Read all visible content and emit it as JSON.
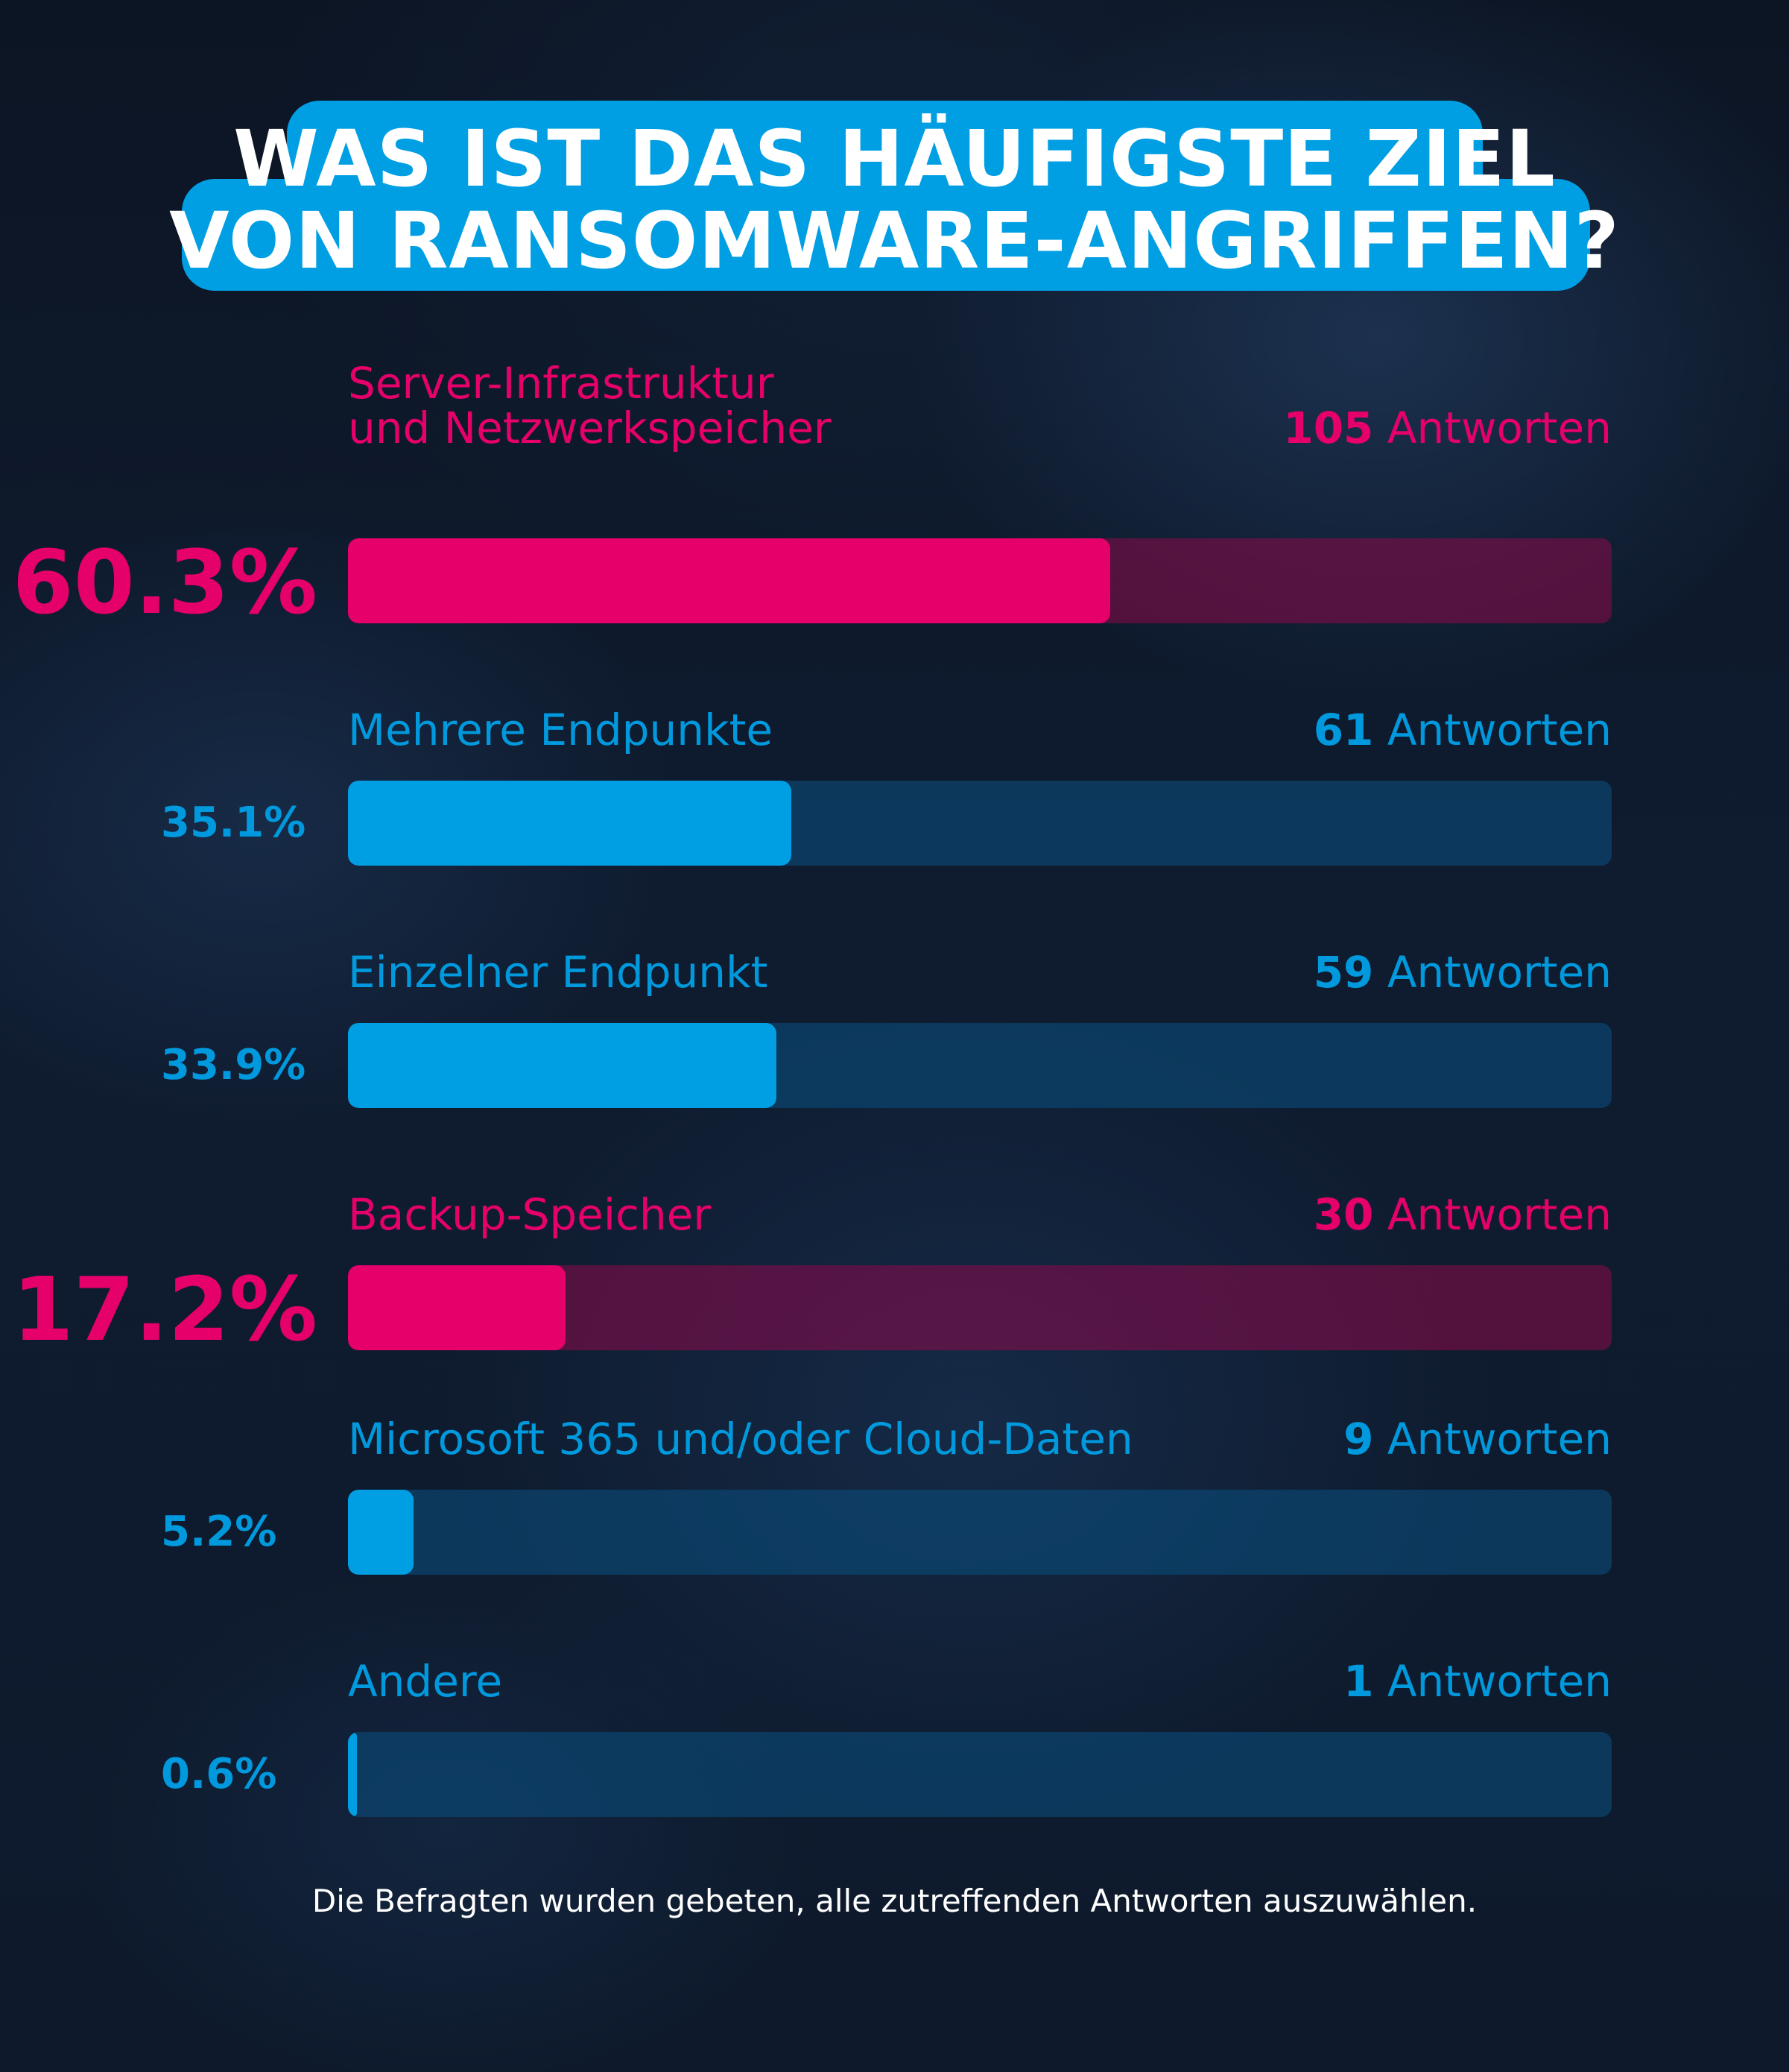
{
  "title": {
    "line1": "WAS IST DAS HÄUFIGSTE ZIEL",
    "line2": "VON RANSOMWARE-ANGRIFFEN?"
  },
  "colors": {
    "highlight": "#e5006a",
    "accent": "#009fe3",
    "background": "#0d1727"
  },
  "chart_data": {
    "type": "bar",
    "orientation": "horizontal",
    "xlim": [
      0,
      100
    ],
    "unit_word": "Antworten",
    "bars": [
      {
        "label_line1": "Server-Infrastruktur",
        "label_line2": "und Netzwerkspeicher",
        "count": "105",
        "count_value": 105,
        "percent_label": "60.3%",
        "value": 60.3,
        "highlight": true
      },
      {
        "label_line1": "Mehrere Endpunkte",
        "count": "61",
        "count_value": 61,
        "percent_label": "35.1%",
        "value": 35.1,
        "highlight": false
      },
      {
        "label_line1": "Einzelner Endpunkt",
        "count": "59",
        "count_value": 59,
        "percent_label": "33.9%",
        "value": 33.9,
        "highlight": false
      },
      {
        "label_line1": "Backup-Speicher",
        "count": "30",
        "count_value": 30,
        "percent_label": "17.2%",
        "value": 17.2,
        "highlight": true
      },
      {
        "label_line1": "Microsoft 365 und/oder Cloud-Daten",
        "count": "9",
        "count_value": 9,
        "percent_label": "5.2%",
        "value": 5.2,
        "highlight": false
      },
      {
        "label_line1": "Andere",
        "count": "1",
        "count_value": 1,
        "percent_label": "0.6%",
        "value": 0.6,
        "highlight": false
      }
    ]
  },
  "footnote": "Die Befragten wurden gebeten, alle zutreffenden Antworten auszuwählen."
}
